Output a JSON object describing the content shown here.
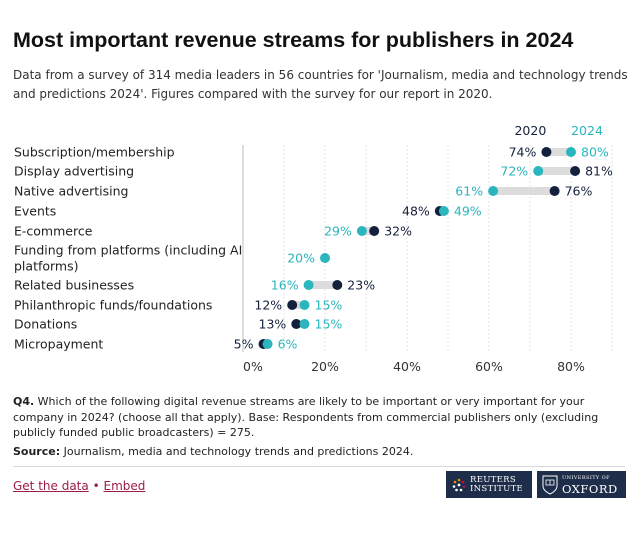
{
  "title": "Most important revenue streams for publishers in 2024",
  "subtitle": "Data from a survey of 314 media leaders in 56 countries for 'Journalism, media and technology trends and predictions 2024'. Figures compared with the survey for our report in 2020.",
  "notes": {
    "q_label": "Q4.",
    "q_text": " Which of the following digital revenue streams are likely to be important or very important for your company in 2024? (choose all that apply). Base: Respondents from commercial publishers only (excluding publicly funded public broadcasters) = 275.",
    "source_label": "Source:",
    "source_text": " Journalism, media and technology trends and predictions 2024."
  },
  "footer": {
    "get_data": "Get the data",
    "separator": "•",
    "embed": "Embed"
  },
  "logos": {
    "reuters_line1": "REUTERS",
    "reuters_line2": "INSTITUTE",
    "oxford_line1": "UNIVERSITY OF",
    "oxford_line2": "OXFORD"
  },
  "colors": {
    "series_2020": "#14213d",
    "series_2024": "#2bb5bd",
    "connector": "#dcdcdc"
  },
  "chart_data": {
    "type": "dot",
    "categories": [
      "Subscription/membership",
      "Display advertising",
      "Native advertising",
      "Events",
      "E-commerce",
      "Funding from platforms (including AI platforms)",
      "Related businesses",
      "Philanthropic funds/foundations",
      "Donations",
      "Micropayment"
    ],
    "series": [
      {
        "name": "2020",
        "values": [
          74,
          81,
          76,
          48,
          32,
          null,
          23,
          12,
          13,
          5
        ]
      },
      {
        "name": "2024",
        "values": [
          80,
          72,
          61,
          49,
          29,
          20,
          16,
          15,
          15,
          6
        ]
      }
    ],
    "x_ticks": [
      "0%",
      "20%",
      "40%",
      "60%",
      "80%"
    ],
    "x_tick_values": [
      0,
      20,
      40,
      60,
      80
    ],
    "xlim": [
      0,
      90
    ],
    "value_suffix": "%",
    "legend_position": "top-right",
    "grid": true
  }
}
